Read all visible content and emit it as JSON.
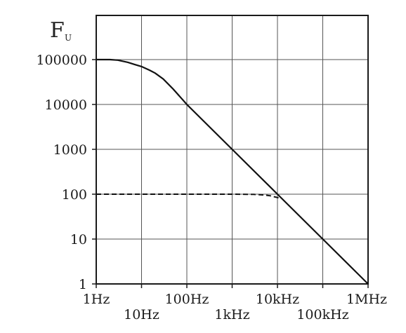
{
  "chart_data": {
    "type": "line",
    "title": "",
    "ylabel": "F",
    "ylabel_subscript": "U",
    "xlabel": "",
    "x_scale": "log",
    "y_scale": "log",
    "xlim": [
      1,
      1000000
    ],
    "ylim": [
      1,
      100000
    ],
    "grid": true,
    "x_ticks": [
      {
        "value": 1,
        "label": "1Hz"
      },
      {
        "value": 10,
        "label": "10Hz"
      },
      {
        "value": 100,
        "label": "100Hz"
      },
      {
        "value": 1000,
        "label": "1kHz"
      },
      {
        "value": 10000,
        "label": "10kHz"
      },
      {
        "value": 100000,
        "label": "100kHz"
      },
      {
        "value": 1000000,
        "label": "1MHz"
      }
    ],
    "y_ticks": [
      {
        "value": 1,
        "label": "1"
      },
      {
        "value": 10,
        "label": "10"
      },
      {
        "value": 100,
        "label": "100"
      },
      {
        "value": 1000,
        "label": "1000"
      },
      {
        "value": 10000,
        "label": "10000"
      },
      {
        "value": 100000,
        "label": "100000"
      }
    ],
    "series": [
      {
        "style": "solid",
        "x": [
          1,
          2,
          3,
          5,
          7,
          10,
          15,
          20,
          30,
          50,
          70,
          100,
          1000,
          10000,
          100000,
          1000000
        ],
        "y": [
          100000,
          100000,
          97000,
          87000,
          78000,
          70000,
          58000,
          50000,
          37000,
          22000,
          15000,
          10000,
          1000,
          100,
          10,
          1
        ]
      },
      {
        "style": "dashed",
        "x": [
          1,
          10,
          100,
          1000,
          3000,
          5000,
          7000,
          10000,
          12000
        ],
        "y": [
          100,
          100,
          100,
          100,
          99,
          96,
          92,
          84,
          80
        ]
      }
    ]
  }
}
